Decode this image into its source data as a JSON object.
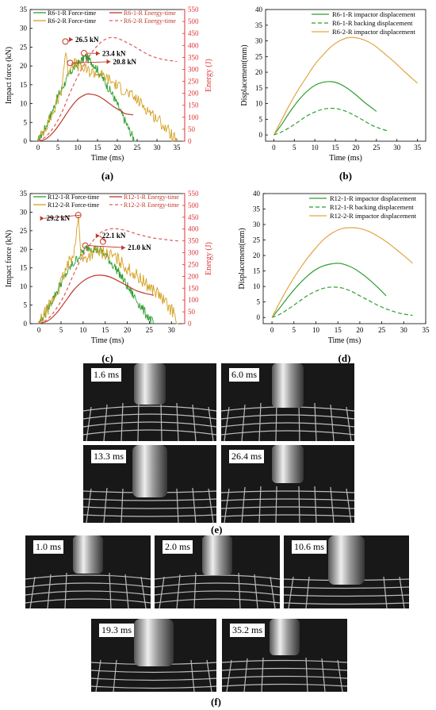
{
  "chart_data": [
    {
      "id": "a",
      "type": "line",
      "caption": "(a)",
      "xlabel": "Time (ms)",
      "ylabel": "Impact force (kN)",
      "ylabel_right": "Energy (J)",
      "xlim": [
        -2,
        37
      ],
      "xticks": [
        0,
        5,
        10,
        15,
        20,
        25,
        30,
        35
      ],
      "ylim": [
        0,
        35
      ],
      "yticks": [
        0,
        5,
        10,
        15,
        20,
        25,
        30,
        35
      ],
      "ylim_right": [
        0,
        550
      ],
      "yticks_right": [
        0,
        50,
        100,
        150,
        200,
        250,
        300,
        350,
        400,
        450,
        500,
        550
      ],
      "legend": [
        "R6-1-R Force-time",
        "R6-2-R Force-time",
        "R6-1-R Energy-time",
        "R6-2-R Energy-time"
      ],
      "annotations": [
        {
          "text": "26.5 kN",
          "x": 6.9,
          "y": 26.5,
          "tx": 9.4,
          "ty": 26.4
        },
        {
          "text": "23.4 kN",
          "x": 11.6,
          "y": 23.4,
          "tx": 16.2,
          "ty": 22.7
        },
        {
          "text": "20.8 kN",
          "x": 8.1,
          "y": 20.8,
          "tx": 18.9,
          "ty": 20.5
        }
      ],
      "series": [
        {
          "name": "R6-1-R Force-time",
          "axis": "left",
          "color": "#2e9e2e",
          "dash": "",
          "noise": 1.2,
          "x": [
            0,
            2,
            4,
            5,
            6,
            7,
            8,
            9,
            10,
            11,
            12,
            13,
            14,
            15,
            17,
            19,
            21,
            23,
            24.5
          ],
          "y": [
            0,
            4,
            9,
            12,
            14,
            16,
            18,
            19.5,
            20.5,
            21.5,
            22.5,
            21.5,
            20.5,
            19,
            15.5,
            12,
            7.5,
            3,
            0
          ]
        },
        {
          "name": "R6-2-R Force-time",
          "axis": "left",
          "color": "#d4a021",
          "dash": "",
          "noise": 1.6,
          "x": [
            0,
            2,
            4,
            5,
            6,
            6.5,
            7,
            7.5,
            8,
            9,
            10,
            11,
            13,
            15,
            17,
            19,
            21,
            23,
            25,
            27,
            29,
            31,
            33,
            35
          ],
          "y": [
            0,
            4,
            8,
            11,
            14,
            20,
            24,
            18,
            20,
            21,
            20,
            19.5,
            18.5,
            18,
            17,
            15.5,
            14,
            12.5,
            11,
            9,
            7,
            5,
            2.5,
            0
          ]
        },
        {
          "name": "R6-1-R Energy-time",
          "axis": "right",
          "color": "#c0392b",
          "dash": "",
          "noise": 0,
          "x": [
            0,
            2,
            4,
            6,
            8,
            10,
            12,
            13,
            15,
            17,
            19,
            21,
            22,
            24
          ],
          "y": [
            0,
            10,
            40,
            85,
            135,
            175,
            195,
            197,
            190,
            170,
            145,
            125,
            115,
            110
          ]
        },
        {
          "name": "R6-2-R Energy-time",
          "axis": "right",
          "color": "#e05a5a",
          "dash": "4,3",
          "noise": 0,
          "x": [
            0,
            2,
            4,
            6,
            8,
            10,
            12,
            14,
            16,
            18,
            20,
            22,
            24,
            26,
            28,
            30,
            32,
            34,
            35
          ],
          "y": [
            0,
            20,
            60,
            120,
            200,
            270,
            330,
            380,
            415,
            432,
            430,
            415,
            398,
            378,
            360,
            348,
            340,
            335,
            333
          ]
        }
      ]
    },
    {
      "id": "b",
      "type": "line",
      "caption": "(b)",
      "xlabel": "Time (ms)",
      "ylabel": "Displacement(mm)",
      "xlim": [
        -2,
        37
      ],
      "xticks": [
        0,
        5,
        10,
        15,
        20,
        25,
        30,
        35
      ],
      "ylim": [
        -2,
        40
      ],
      "yticks": [
        0,
        5,
        10,
        15,
        20,
        25,
        30,
        35,
        40
      ],
      "legend": [
        "R6-1-R impactor displacement",
        "R6-1-R backing displacement",
        "R6-2-R impactor displacement"
      ],
      "series": [
        {
          "name": "R6-1-R impactor displacement",
          "color": "#2e9e2e",
          "dash": "",
          "x": [
            0,
            2,
            4,
            6,
            8,
            10,
            12,
            14,
            16,
            18,
            20,
            22,
            24,
            25
          ],
          "y": [
            0,
            3.5,
            7.5,
            11,
            13.8,
            15.8,
            16.8,
            17,
            16.3,
            14.8,
            12.8,
            10.5,
            8.5,
            7.5
          ]
        },
        {
          "name": "R6-1-R backing displacement",
          "color": "#2e9e2e",
          "dash": "5,3",
          "x": [
            0,
            2,
            4,
            6,
            8,
            10,
            12,
            14,
            16,
            18,
            20,
            22,
            24,
            26,
            28
          ],
          "y": [
            0,
            1,
            2.5,
            4.2,
            6,
            7.3,
            8.2,
            8.5,
            8.2,
            7.3,
            6,
            4.5,
            3,
            2,
            1.2
          ]
        },
        {
          "name": "R6-2-R impactor displacement",
          "color": "#e0a644",
          "dash": "",
          "x": [
            0,
            2,
            4,
            6,
            8,
            10,
            12,
            14,
            16,
            18,
            20,
            22,
            24,
            26,
            28,
            30,
            32,
            35
          ],
          "y": [
            0,
            5,
            10,
            14.5,
            18.5,
            22.5,
            25.5,
            28.2,
            30,
            31,
            31,
            30.3,
            29,
            27,
            24.8,
            22.5,
            20,
            16.5
          ]
        }
      ]
    },
    {
      "id": "c",
      "type": "line",
      "caption": "(c)",
      "xlabel": "Time (ms)",
      "ylabel": "Impact force (kN)",
      "ylabel_right": "Energy (J)",
      "xlim": [
        -2,
        33
      ],
      "xticks": [
        0,
        5,
        10,
        15,
        20,
        25,
        30
      ],
      "ylim": [
        0,
        35
      ],
      "yticks": [
        0,
        5,
        10,
        15,
        20,
        25,
        30,
        35
      ],
      "ylim_right": [
        0,
        550
      ],
      "yticks_right": [
        0,
        50,
        100,
        150,
        200,
        250,
        300,
        350,
        400,
        450,
        500,
        550
      ],
      "legend": [
        "R12-1-R Force-time",
        "R12-2-R Force-time",
        "R12-1-R Energy-time",
        "R12-2-R Energy-time"
      ],
      "annotations": [
        {
          "text": "29.2 kN",
          "x": 8.9,
          "y": 29.2,
          "tx": 1.7,
          "ty": 27.7
        },
        {
          "text": "22.1 kN",
          "x": 14.5,
          "y": 22.1,
          "tx": 14.3,
          "ty": 23.0
        },
        {
          "text": "21.0 kN",
          "x": 10.5,
          "y": 21.0,
          "tx": 20.1,
          "ty": 19.8
        }
      ],
      "series": [
        {
          "name": "R12-1-R Force-time",
          "axis": "left",
          "color": "#2e9e2e",
          "dash": "",
          "noise": 1.3,
          "x": [
            0,
            2,
            4,
            5,
            6,
            7,
            8,
            9,
            10,
            11,
            12,
            13,
            14,
            15,
            16,
            18,
            20,
            22,
            24,
            26
          ],
          "y": [
            0,
            4,
            8.5,
            11,
            13,
            15,
            16.5,
            18,
            19.5,
            20.5,
            20.5,
            20,
            19.5,
            18.5,
            17,
            14,
            10,
            6.5,
            3,
            0
          ]
        },
        {
          "name": "R12-2-R Force-time",
          "axis": "left",
          "color": "#d4a021",
          "dash": "",
          "noise": 1.8,
          "x": [
            0,
            2,
            4,
            5,
            6,
            7,
            8,
            8.5,
            9,
            9.5,
            10,
            11,
            12,
            13,
            15,
            17,
            19,
            21,
            23,
            25,
            27,
            29,
            30.5,
            31.5
          ],
          "y": [
            0,
            4,
            8,
            11,
            14,
            17,
            20,
            24,
            29,
            19,
            17,
            18,
            19,
            19.5,
            19,
            18,
            16,
            14,
            12,
            10,
            8,
            5,
            3,
            0
          ]
        },
        {
          "name": "R12-1-R Energy-time",
          "axis": "right",
          "color": "#c0392b",
          "dash": "",
          "noise": 0,
          "x": [
            0,
            2,
            4,
            6,
            8,
            10,
            12,
            14,
            16,
            18,
            20,
            22,
            24,
            26
          ],
          "y": [
            0,
            12,
            45,
            95,
            145,
            180,
            200,
            205,
            198,
            180,
            160,
            140,
            128,
            120
          ]
        },
        {
          "name": "R12-2-R Energy-time",
          "axis": "right",
          "color": "#e05a5a",
          "dash": "4,3",
          "noise": 0,
          "x": [
            0,
            2,
            4,
            6,
            8,
            10,
            12,
            14,
            16,
            18,
            20,
            22,
            24,
            26,
            28,
            30,
            31.5
          ],
          "y": [
            0,
            20,
            65,
            130,
            215,
            290,
            345,
            385,
            400,
            400,
            392,
            380,
            370,
            362,
            357,
            352,
            350
          ]
        }
      ]
    },
    {
      "id": "d",
      "type": "line",
      "caption": "(d)",
      "xlabel": "Time (ms)",
      "ylabel": "Displacement(mm)",
      "xlim": [
        -2,
        35
      ],
      "xticks": [
        0,
        5,
        10,
        15,
        20,
        25,
        30,
        35
      ],
      "ylim": [
        -2,
        40
      ],
      "yticks": [
        0,
        5,
        10,
        15,
        20,
        25,
        30,
        35,
        40
      ],
      "legend": [
        "R12-1-R impactor displacement",
        "R12-1-R backing displacement",
        "R12-2-R impactor displacement"
      ],
      "series": [
        {
          "name": "R12-1-R impactor displacement",
          "color": "#2e9e2e",
          "dash": "",
          "x": [
            0,
            2,
            4,
            6,
            8,
            10,
            12,
            14,
            15,
            16,
            18,
            20,
            22,
            24,
            26
          ],
          "y": [
            0,
            3.5,
            7.2,
            10.5,
            13.3,
            15.5,
            16.8,
            17.4,
            17.5,
            17.3,
            16.3,
            14.6,
            12.4,
            9.8,
            7
          ]
        },
        {
          "name": "R12-1-R backing displacement",
          "color": "#2e9e2e",
          "dash": "5,3",
          "x": [
            0,
            2,
            4,
            6,
            8,
            10,
            12,
            14,
            16,
            18,
            20,
            22,
            24,
            26,
            28,
            30,
            32
          ],
          "y": [
            0,
            1.2,
            3,
            5,
            7,
            8.5,
            9.5,
            9.8,
            9.5,
            8.5,
            7,
            5.5,
            4,
            2.8,
            1.8,
            1.1,
            0.7
          ]
        },
        {
          "name": "R12-2-R impactor displacement",
          "color": "#e0a644",
          "dash": "",
          "x": [
            0,
            2,
            4,
            6,
            8,
            10,
            12,
            14,
            16,
            18,
            20,
            22,
            24,
            26,
            28,
            30,
            32
          ],
          "y": [
            0,
            5.5,
            10.5,
            15,
            19,
            22.5,
            25.5,
            27.5,
            28.7,
            29,
            28.7,
            27.8,
            26.3,
            24.5,
            22.3,
            20,
            17.5
          ]
        }
      ]
    }
  ],
  "photos_e": {
    "caption": "(e)",
    "frames": [
      "1.6 ms",
      "6.0 ms",
      "13.3 ms",
      "26.4 ms"
    ]
  },
  "photos_f": {
    "caption": "(f)",
    "frames": [
      "1.0 ms",
      "2.0 ms",
      "10.6 ms",
      "19.3 ms",
      "35.2 ms"
    ]
  }
}
